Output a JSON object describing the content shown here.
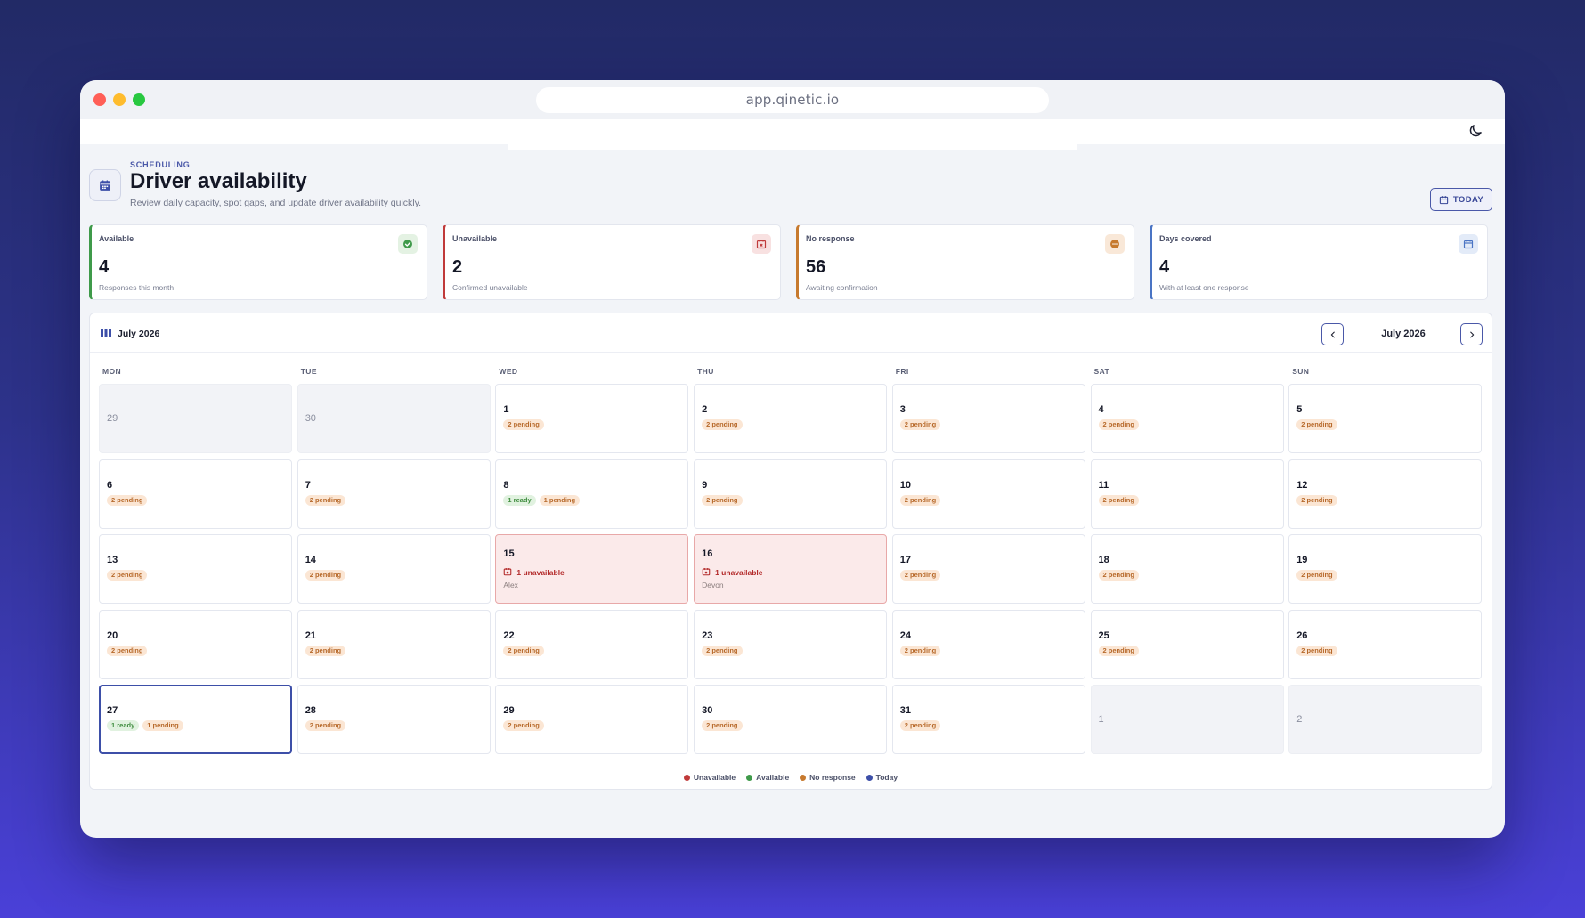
{
  "browser": {
    "url": "app.qinetic.io"
  },
  "header": {
    "eyebrow": "SCHEDULING",
    "title": "Driver availability",
    "subtitle": "Review daily capacity, spot gaps, and update driver availability quickly.",
    "today_label": "TODAY"
  },
  "stats": [
    {
      "label": "Available",
      "value": "4",
      "desc": "Responses this month",
      "color": "#3f9a4a",
      "icon": "check-circle-icon"
    },
    {
      "label": "Unavailable",
      "value": "2",
      "desc": "Confirmed unavailable",
      "color": "#c03a3a",
      "icon": "calendar-x-icon"
    },
    {
      "label": "No response",
      "value": "56",
      "desc": "Awaiting confirmation",
      "color": "#c77a2e",
      "icon": "dots-circle-icon"
    },
    {
      "label": "Days covered",
      "value": "4",
      "desc": "With at least one response",
      "color": "#4a74c4",
      "icon": "calendar-icon"
    }
  ],
  "calendar": {
    "view_title": "July 2026",
    "nav_month": "July 2026",
    "weekdays": [
      "MON",
      "TUE",
      "WED",
      "THU",
      "FRI",
      "SAT",
      "SUN"
    ],
    "days": [
      {
        "n": "29",
        "type": "muted"
      },
      {
        "n": "30",
        "type": "muted"
      },
      {
        "n": "1",
        "badges": [
          "2 pending"
        ]
      },
      {
        "n": "2",
        "badges": [
          "2 pending"
        ]
      },
      {
        "n": "3",
        "badges": [
          "2 pending"
        ]
      },
      {
        "n": "4",
        "badges": [
          "2 pending"
        ]
      },
      {
        "n": "5",
        "badges": [
          "2 pending"
        ]
      },
      {
        "n": "6",
        "badges": [
          "2 pending"
        ]
      },
      {
        "n": "7",
        "badges": [
          "2 pending"
        ]
      },
      {
        "n": "8",
        "badges": [
          "1 ready",
          "1 pending"
        ]
      },
      {
        "n": "9",
        "badges": [
          "2 pending"
        ]
      },
      {
        "n": "10",
        "badges": [
          "2 pending"
        ]
      },
      {
        "n": "11",
        "badges": [
          "2 pending"
        ]
      },
      {
        "n": "12",
        "badges": [
          "2 pending"
        ]
      },
      {
        "n": "13",
        "badges": [
          "2 pending"
        ]
      },
      {
        "n": "14",
        "badges": [
          "2 pending"
        ]
      },
      {
        "n": "15",
        "type": "unavail",
        "unavail": "1 unavailable",
        "name": "Alex"
      },
      {
        "n": "16",
        "type": "unavail",
        "unavail": "1 unavailable",
        "name": "Devon"
      },
      {
        "n": "17",
        "badges": [
          "2 pending"
        ]
      },
      {
        "n": "18",
        "badges": [
          "2 pending"
        ]
      },
      {
        "n": "19",
        "badges": [
          "2 pending"
        ]
      },
      {
        "n": "20",
        "badges": [
          "2 pending"
        ]
      },
      {
        "n": "21",
        "badges": [
          "2 pending"
        ]
      },
      {
        "n": "22",
        "badges": [
          "2 pending"
        ]
      },
      {
        "n": "23",
        "badges": [
          "2 pending"
        ]
      },
      {
        "n": "24",
        "badges": [
          "2 pending"
        ]
      },
      {
        "n": "25",
        "badges": [
          "2 pending"
        ]
      },
      {
        "n": "26",
        "badges": [
          "2 pending"
        ]
      },
      {
        "n": "27",
        "type": "today",
        "badges": [
          "1 ready",
          "1 pending"
        ]
      },
      {
        "n": "28",
        "badges": [
          "2 pending"
        ]
      },
      {
        "n": "29",
        "badges": [
          "2 pending"
        ]
      },
      {
        "n": "30",
        "badges": [
          "2 pending"
        ]
      },
      {
        "n": "31",
        "badges": [
          "2 pending"
        ]
      },
      {
        "n": "1",
        "type": "muted"
      },
      {
        "n": "2",
        "type": "muted"
      }
    ],
    "legend": [
      {
        "label": "Unavailable",
        "color": "#c03a3a"
      },
      {
        "label": "Available",
        "color": "#3f9a4a"
      },
      {
        "label": "No response",
        "color": "#c77a2e"
      },
      {
        "label": "Today",
        "color": "#3d4fa8"
      }
    ]
  }
}
